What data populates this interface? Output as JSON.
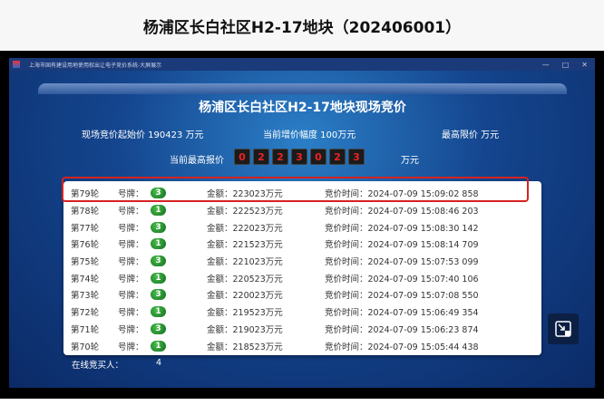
{
  "header": {
    "title": "杨浦区长白社区H2-17地块（202406001）"
  },
  "window": {
    "title": "上海市国有建设用地使用权出让电子竞价系统-大屏展示",
    "controls": [
      "—",
      "□",
      "✕"
    ]
  },
  "panel": {
    "title": "杨浦区长白社区H2-17地块现场竞价",
    "start_price": "现场竞价起始价 190423 万元",
    "increment": "当前增价幅度 100万元",
    "max_price": "最高限价 万元",
    "current_label": "当前最高报价",
    "current_digits": [
      "0",
      "2",
      "2",
      "3",
      "0",
      "2",
      "3"
    ],
    "unit": "万元"
  },
  "bids": [
    {
      "round": "第79轮",
      "plate_label": "号牌：",
      "plate": "3",
      "amount": "金额：223023万元",
      "time": "竞价时间：2024-07-09 15:09:02 858"
    },
    {
      "round": "第78轮",
      "plate_label": "号牌：",
      "plate": "1",
      "amount": "金额：222523万元",
      "time": "竞价时间：2024-07-09 15:08:46 203"
    },
    {
      "round": "第77轮",
      "plate_label": "号牌：",
      "plate": "3",
      "amount": "金额：222023万元",
      "time": "竞价时间：2024-07-09 15:08:30 142"
    },
    {
      "round": "第76轮",
      "plate_label": "号牌：",
      "plate": "1",
      "amount": "金额：221523万元",
      "time": "竞价时间：2024-07-09 15:08:14 709"
    },
    {
      "round": "第75轮",
      "plate_label": "号牌：",
      "plate": "3",
      "amount": "金额：221023万元",
      "time": "竞价时间：2024-07-09 15:07:53 099"
    },
    {
      "round": "第74轮",
      "plate_label": "号牌：",
      "plate": "1",
      "amount": "金额：220523万元",
      "time": "竞价时间：2024-07-09 15:07:40 106"
    },
    {
      "round": "第73轮",
      "plate_label": "号牌：",
      "plate": "3",
      "amount": "金额：220023万元",
      "time": "竞价时间：2024-07-09 15:07:08 550"
    },
    {
      "round": "第72轮",
      "plate_label": "号牌：",
      "plate": "1",
      "amount": "金额：219523万元",
      "time": "竞价时间：2024-07-09 15:06:49 354"
    },
    {
      "round": "第71轮",
      "plate_label": "号牌：",
      "plate": "3",
      "amount": "金额：219023万元",
      "time": "竞价时间：2024-07-09 15:06:23 874"
    },
    {
      "round": "第70轮",
      "plate_label": "号牌：",
      "plate": "1",
      "amount": "金额：218523万元",
      "time": "竞价时间：2024-07-09 15:05:44 438"
    }
  ],
  "online": {
    "label": "在线竞买人：",
    "count": "4"
  },
  "colors": {
    "highlight": "#d62222",
    "badge": "#1f8a2e",
    "digit": "#e22222"
  }
}
